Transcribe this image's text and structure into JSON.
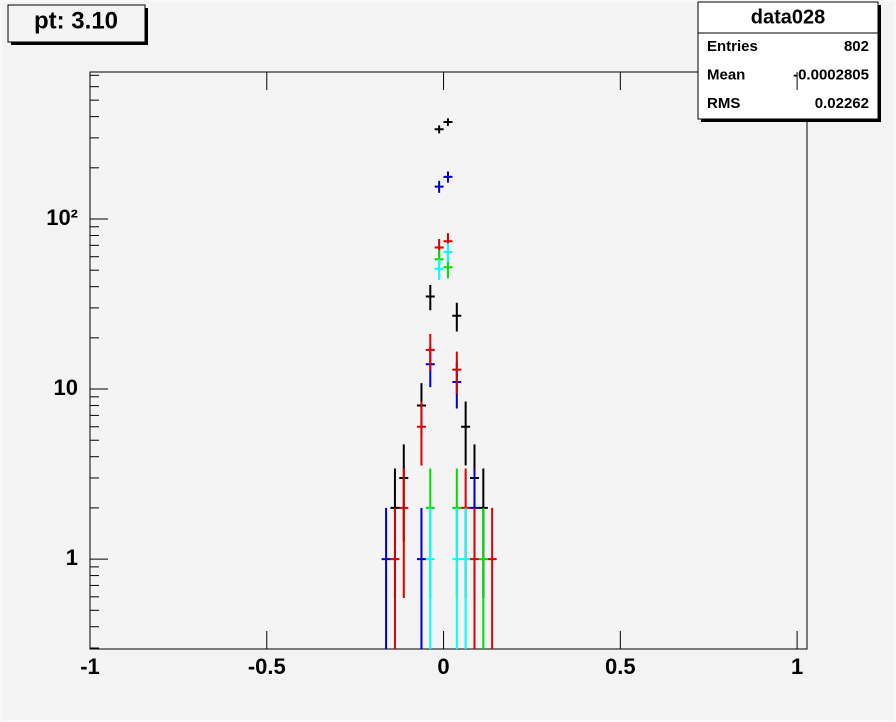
{
  "chart_data": {
    "type": "errorbar",
    "title": "pt: 3.10",
    "stats": {
      "name": "data028",
      "labels": [
        "Entries",
        "Mean",
        "RMS"
      ],
      "values": [
        802,
        -0.0002805,
        0.02262
      ]
    },
    "xlim": [
      -1,
      1.028
    ],
    "xticks": [
      -1,
      -0.5,
      0,
      0.5,
      1
    ],
    "log_y": true,
    "ylim": [
      0.296,
      732
    ],
    "yticks": [
      1,
      10,
      {
        "value": 100,
        "label": "10²"
      }
    ],
    "yminorticks": [
      0.3,
      0.4,
      0.5,
      0.6,
      0.7,
      0.8,
      0.9,
      2,
      3,
      4,
      5,
      6,
      7,
      8,
      9,
      20,
      30,
      40,
      50,
      60,
      70,
      80,
      90,
      200,
      300,
      400,
      500,
      600,
      700
    ],
    "series": [
      {
        "color": "#000000",
        "x": [
          -0.1375,
          -0.1125,
          -0.0625,
          -0.0375,
          -0.0125,
          0.0125,
          0.0375,
          0.0625,
          0.0875,
          0.1125
        ],
        "values": [
          2,
          3,
          8,
          35,
          337,
          372,
          27,
          6,
          3,
          2
        ],
        "errors": [
          1.41,
          1.73,
          2.83,
          5.92,
          18.36,
          19.29,
          5.2,
          2.45,
          1.73,
          1.41
        ]
      },
      {
        "color": "#0000cc",
        "x": [
          -0.1625,
          -0.0625,
          -0.0375,
          -0.0125,
          0.0125,
          0.0375,
          0.0875
        ],
        "values": [
          1,
          1,
          14,
          155,
          177,
          11,
          2
        ],
        "errors": [
          1,
          1,
          3.74,
          12.45,
          13.3,
          3.32,
          1.41
        ]
      },
      {
        "color": "#dd0000",
        "x": [
          -0.1375,
          -0.1125,
          -0.0625,
          -0.0375,
          -0.0125,
          0.0125,
          0.0375,
          0.0625,
          0.0875,
          0.1375
        ],
        "values": [
          1,
          2,
          6,
          17,
          68,
          74,
          13,
          2,
          1,
          1
        ],
        "errors": [
          1,
          1.41,
          2.45,
          4.12,
          8.25,
          8.6,
          3.61,
          1.41,
          1,
          1
        ]
      },
      {
        "color": "#00dd00",
        "x": [
          -0.0375,
          -0.0125,
          0.0125,
          0.0375,
          0.1125
        ],
        "values": [
          2,
          58,
          52,
          2,
          1
        ],
        "errors": [
          1.41,
          7.62,
          7.21,
          1.41,
          1
        ]
      },
      {
        "color": "#00ffff",
        "x": [
          -0.0375,
          -0.0125,
          0.0125,
          0.0375,
          0.0625
        ],
        "values": [
          1,
          51,
          64,
          1,
          1
        ],
        "errors": [
          1,
          7.14,
          8,
          1,
          1
        ]
      }
    ]
  }
}
